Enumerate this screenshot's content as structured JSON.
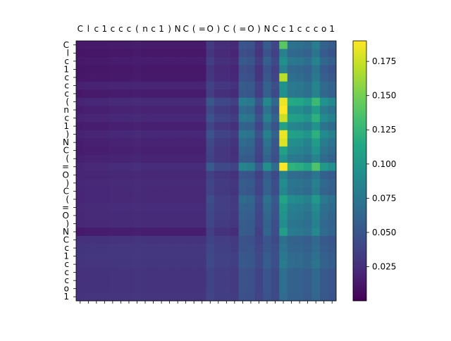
{
  "chart_data": {
    "type": "heatmap",
    "title": "",
    "xlabel": "",
    "ylabel": "",
    "x_tokens": [
      "C",
      "l",
      "c",
      "1",
      "c",
      "c",
      "c",
      "(",
      "n",
      "c",
      "1",
      ")",
      "N",
      "C",
      "(",
      "=",
      "O",
      ")",
      "C",
      "(",
      "=",
      "O",
      ")",
      "N",
      "C",
      "c",
      "1",
      "c",
      "c",
      "c",
      "o",
      "1"
    ],
    "y_tokens": [
      "C",
      "l",
      "c",
      "1",
      "c",
      "c",
      "c",
      "(",
      "n",
      "c",
      "1",
      ")",
      "N",
      "C",
      "(",
      "=",
      "O",
      ")",
      "C",
      "(",
      "=",
      "O",
      ")",
      "N",
      "C",
      "c",
      "1",
      "c",
      "c",
      "c",
      "o",
      "1"
    ],
    "colorbar": {
      "colormap": "viridis",
      "vmin": 0.0,
      "vmax": 0.19,
      "ticks": [
        0.025,
        0.05,
        0.075,
        0.1,
        0.125,
        0.15,
        0.175
      ],
      "tick_labels": [
        "0.025",
        "0.050",
        "0.075",
        "0.100",
        "0.125",
        "0.150",
        "0.175"
      ]
    },
    "column_base": [
      0.012,
      0.013,
      0.013,
      0.013,
      0.014,
      0.014,
      0.014,
      0.015,
      0.014,
      0.014,
      0.014,
      0.014,
      0.014,
      0.014,
      0.014,
      0.014,
      0.032,
      0.025,
      0.025,
      0.022,
      0.05,
      0.048,
      0.032,
      0.055,
      0.04,
      0.09,
      0.072,
      0.07,
      0.065,
      0.08,
      0.06,
      0.055
    ],
    "row_factor": [
      1.0,
      0.9,
      1.05,
      0.9,
      0.95,
      1.0,
      1.05,
      1.6,
      1.3,
      1.5,
      1.2,
      1.5,
      1.3,
      1.2,
      1.0,
      1.7,
      0.8,
      0.9,
      0.85,
      1.2,
      1.0,
      0.95,
      0.9,
      1.1,
      0.55,
      0.55,
      0.6,
      0.65,
      0.55,
      0.55,
      0.55,
      0.5
    ],
    "row_offset": [
      0.0,
      0.0,
      0.0,
      0.0,
      0.0,
      0.005,
      0.0,
      0.0,
      0.0,
      0.0,
      0.0,
      0.0,
      0.0,
      0.0,
      0.005,
      0.0,
      0.01,
      0.01,
      0.01,
      0.005,
      0.01,
      0.01,
      0.01,
      0.0,
      0.02,
      0.022,
      0.022,
      0.02,
      0.02,
      0.02,
      0.02,
      0.022
    ],
    "highlight_cells": [
      {
        "row": 7,
        "col": 25,
        "value": 0.185
      },
      {
        "row": 8,
        "col": 25,
        "value": 0.19
      },
      {
        "row": 9,
        "col": 25,
        "value": 0.175
      },
      {
        "row": 11,
        "col": 25,
        "value": 0.185
      },
      {
        "row": 12,
        "col": 25,
        "value": 0.18
      },
      {
        "row": 15,
        "col": 25,
        "value": 0.19
      },
      {
        "row": 4,
        "col": 25,
        "value": 0.17
      },
      {
        "row": 0,
        "col": 25,
        "value": 0.14
      },
      {
        "row": 19,
        "col": 25,
        "value": 0.11
      },
      {
        "row": 23,
        "col": 25,
        "value": 0.105
      }
    ]
  }
}
